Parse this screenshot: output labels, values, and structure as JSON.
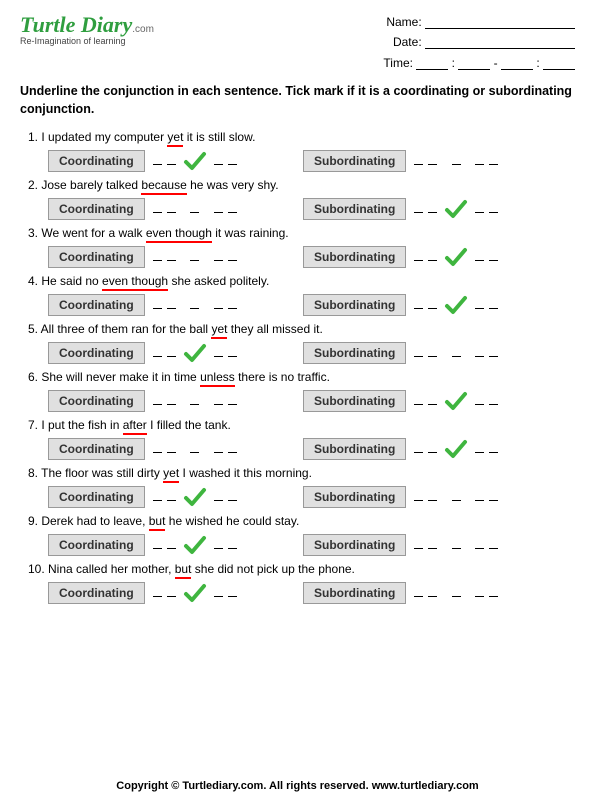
{
  "logo": {
    "main": "Turtle Diary",
    "com": ".com",
    "sub": "Re-Imagination of learning"
  },
  "meta": {
    "name_label": "Name:",
    "date_label": "Date:",
    "time_label": "Time:"
  },
  "instruction": "Underline the conjunction in each sentence. Tick mark if it is a coordinating or subordinating conjunction.",
  "labels": {
    "coord": "Coordinating",
    "subord": "Subordinating"
  },
  "questions": [
    {
      "n": "1.",
      "pre": "I updated my computer ",
      "u": "yet",
      "post": " it is still slow.",
      "ans": "coord"
    },
    {
      "n": "2.",
      "pre": "Jose barely talked ",
      "u": "because",
      "post": " he was very shy.",
      "ans": "subord"
    },
    {
      "n": "3.",
      "pre": "We went for a walk ",
      "u": "even though",
      "post": " it was raining.",
      "ans": "subord"
    },
    {
      "n": "4.",
      "pre": "He said no ",
      "u": "even though",
      "post": " she asked politely.",
      "ans": "subord"
    },
    {
      "n": "5.",
      "pre": "All three of them ran for the ball ",
      "u": "yet",
      "post": " they all missed it.",
      "ans": "coord"
    },
    {
      "n": "6.",
      "pre": "She will never make it in time ",
      "u": "unless",
      "post": " there is no traffic.",
      "ans": "subord"
    },
    {
      "n": "7.",
      "pre": "I put the fish in ",
      "u": "after",
      "post": " I filled the tank.",
      "ans": "subord"
    },
    {
      "n": "8.",
      "pre": "The floor was still dirty ",
      "u": "yet",
      "post": " I washed it this morning.",
      "ans": "coord"
    },
    {
      "n": "9.",
      "pre": "Derek had to leave, ",
      "u": "but",
      "post": " he wished he could stay.",
      "ans": "coord"
    },
    {
      "n": "10.",
      "pre": "Nina called her mother, ",
      "u": "but",
      "post": " she did not pick up the phone.",
      "ans": "coord"
    }
  ],
  "footer": "Copyright © Turtlediary.com. All rights reserved. www.turtlediary.com"
}
